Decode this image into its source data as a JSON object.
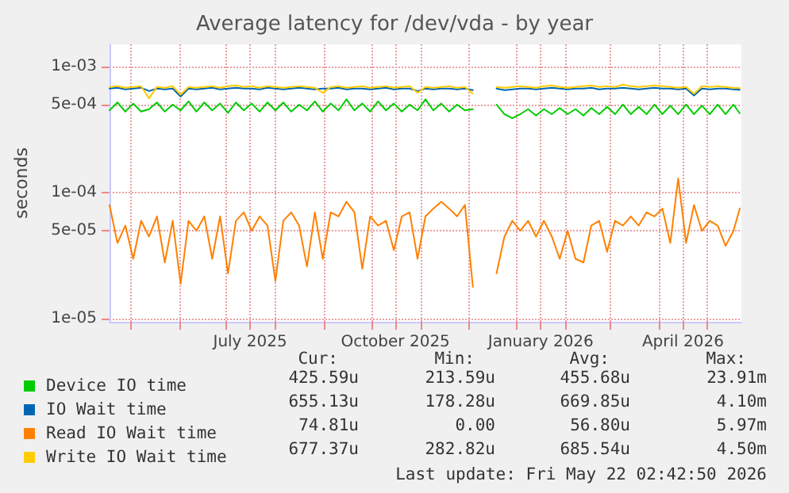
{
  "chart_data": {
    "type": "line",
    "title": "Average latency for /dev/vda - by year",
    "ylabel": "seconds",
    "log": true,
    "grid": true,
    "legend": "bottom left",
    "marker": "none",
    "line_style": "solid",
    "xlim": [
      "2025-04-18",
      "2026-05-23"
    ],
    "xticks": [
      {
        "value": "2025-05-01",
        "label": null
      },
      {
        "value": "2025-06-01",
        "label": null
      },
      {
        "value": "2025-07-01",
        "label": null
      },
      {
        "value": "2025-07-16",
        "label": "July 2025"
      },
      {
        "value": "2025-08-01",
        "label": null
      },
      {
        "value": "2025-09-01",
        "label": null
      },
      {
        "value": "2025-10-01",
        "label": null
      },
      {
        "value": "2025-10-16",
        "label": "October 2025"
      },
      {
        "value": "2025-11-01",
        "label": null
      },
      {
        "value": "2025-12-01",
        "label": null
      },
      {
        "value": "2026-01-01",
        "label": null
      },
      {
        "value": "2026-01-16",
        "label": "January 2026"
      },
      {
        "value": "2026-02-01",
        "label": null
      },
      {
        "value": "2026-03-01",
        "label": null
      },
      {
        "value": "2026-04-01",
        "label": null
      },
      {
        "value": "2026-04-16",
        "label": "April 2026"
      },
      {
        "value": "2026-05-01",
        "label": null
      }
    ],
    "ylim": [
      9.5e-06,
      0.0015
    ],
    "yticks": [
      {
        "value": 1e-05,
        "label": "1e-05"
      },
      {
        "value": 5e-05,
        "label": "5e-05"
      },
      {
        "value": 0.0001,
        "label": "1e-04"
      },
      {
        "value": 0.0005,
        "label": "5e-04"
      },
      {
        "value": 0.001,
        "label": "1e-03"
      }
    ],
    "x": [
      "2025-04-18",
      "2025-04-23",
      "2025-04-28",
      "2025-05-03",
      "2025-05-08",
      "2025-05-13",
      "2025-05-18",
      "2025-05-23",
      "2025-05-28",
      "2025-06-02",
      "2025-06-07",
      "2025-06-12",
      "2025-06-17",
      "2025-06-22",
      "2025-06-27",
      "2025-07-02",
      "2025-07-07",
      "2025-07-12",
      "2025-07-17",
      "2025-07-22",
      "2025-07-27",
      "2025-08-01",
      "2025-08-06",
      "2025-08-11",
      "2025-08-16",
      "2025-08-21",
      "2025-08-26",
      "2025-08-31",
      "2025-09-05",
      "2025-09-10",
      "2025-09-15",
      "2025-09-20",
      "2025-09-25",
      "2025-09-30",
      "2025-10-05",
      "2025-10-10",
      "2025-10-15",
      "2025-10-20",
      "2025-10-25",
      "2025-10-30",
      "2025-11-04",
      "2025-11-09",
      "2025-11-14",
      "2025-11-19",
      "2025-11-24",
      "2025-11-29",
      "2025-12-04",
      "2025-12-09",
      "2025-12-14",
      "2025-12-19",
      "2025-12-24",
      "2025-12-29",
      "2026-01-03",
      "2026-01-08",
      "2026-01-13",
      "2026-01-18",
      "2026-01-23",
      "2026-01-28",
      "2026-02-02",
      "2026-02-07",
      "2026-02-12",
      "2026-02-17",
      "2026-02-22",
      "2026-02-27",
      "2026-03-04",
      "2026-03-09",
      "2026-03-14",
      "2026-03-19",
      "2026-03-24",
      "2026-03-29",
      "2026-04-03",
      "2026-04-08",
      "2026-04-13",
      "2026-04-18",
      "2026-04-23",
      "2026-04-28",
      "2026-05-03",
      "2026-05-08",
      "2026-05-13",
      "2026-05-18",
      "2026-05-22"
    ],
    "series": [
      {
        "name": "Device IO time",
        "color": "#00cc00",
        "values": [
          0.00045,
          0.00052,
          0.00044,
          0.00051,
          0.00044,
          0.00046,
          0.00052,
          0.00044,
          0.0005,
          0.00045,
          0.00053,
          0.00044,
          0.00052,
          0.00045,
          0.00051,
          0.00043,
          0.00052,
          0.00045,
          0.00051,
          0.00044,
          0.00052,
          0.00045,
          0.00052,
          0.00044,
          0.0005,
          0.00045,
          0.00053,
          0.00044,
          0.00051,
          0.00045,
          0.00055,
          0.00045,
          0.00051,
          0.00044,
          0.00053,
          0.00045,
          0.00051,
          0.00044,
          0.0005,
          0.00045,
          0.00055,
          0.00045,
          0.00051,
          0.00044,
          0.0005,
          0.00045,
          0.00046,
          null,
          null,
          0.0005,
          0.00042,
          0.00039,
          0.00042,
          0.00046,
          0.00041,
          0.00046,
          0.00042,
          0.00047,
          0.00042,
          0.00046,
          0.00041,
          0.00047,
          0.00042,
          0.00048,
          0.00042,
          0.0005,
          0.00042,
          0.00048,
          0.00042,
          0.0005,
          0.00042,
          0.00049,
          0.00042,
          0.0005,
          0.00042,
          0.00049,
          0.00042,
          0.0005,
          0.00042,
          0.0005,
          0.000426
        ]
      },
      {
        "name": "IO Wait time",
        "color": "#0066b3",
        "values": [
          0.00067,
          0.00068,
          0.00066,
          0.00067,
          0.00068,
          0.00064,
          0.00067,
          0.00066,
          0.00067,
          0.00058,
          0.00067,
          0.00066,
          0.00067,
          0.00068,
          0.00066,
          0.00067,
          0.00068,
          0.00067,
          0.00067,
          0.00066,
          0.00068,
          0.00067,
          0.00066,
          0.00067,
          0.00068,
          0.00067,
          0.00066,
          0.00067,
          0.00067,
          0.00068,
          0.00066,
          0.00067,
          0.00067,
          0.00066,
          0.00067,
          0.00068,
          0.00066,
          0.00067,
          0.00067,
          0.00064,
          0.00067,
          0.00066,
          0.00067,
          0.00067,
          0.00066,
          0.00067,
          0.00065,
          null,
          null,
          0.00067,
          0.00065,
          0.00066,
          0.00067,
          0.00067,
          0.00066,
          0.00067,
          0.00068,
          0.00067,
          0.00066,
          0.00067,
          0.00067,
          0.00068,
          0.00066,
          0.00067,
          0.00067,
          0.00068,
          0.00067,
          0.00066,
          0.00067,
          0.00068,
          0.00067,
          0.00067,
          0.00066,
          0.00067,
          0.00059,
          0.00067,
          0.00066,
          0.00067,
          0.00067,
          0.00066,
          0.000655
        ]
      },
      {
        "name": "Read IO Wait time",
        "color": "#ff8000",
        "values": [
          8e-05,
          4e-05,
          5.5e-05,
          3e-05,
          6e-05,
          4.5e-05,
          6.5e-05,
          2.8e-05,
          6e-05,
          1.9e-05,
          6e-05,
          5e-05,
          6.5e-05,
          3e-05,
          6.5e-05,
          2.3e-05,
          6e-05,
          7e-05,
          5e-05,
          6.5e-05,
          5.5e-05,
          2e-05,
          6e-05,
          7e-05,
          5.5e-05,
          2.6e-05,
          7e-05,
          3e-05,
          7e-05,
          6.5e-05,
          8.5e-05,
          7e-05,
          2.5e-05,
          6.5e-05,
          5.5e-05,
          6e-05,
          3.5e-05,
          6.5e-05,
          7e-05,
          3e-05,
          6.5e-05,
          7.5e-05,
          8.5e-05,
          7.5e-05,
          6.5e-05,
          8e-05,
          1.8e-05,
          null,
          null,
          2.3e-05,
          4.5e-05,
          6e-05,
          5e-05,
          6e-05,
          4.5e-05,
          6e-05,
          4.5e-05,
          3e-05,
          5e-05,
          3e-05,
          2.8e-05,
          5.5e-05,
          6e-05,
          3.4e-05,
          6e-05,
          5.5e-05,
          6.5e-05,
          5.5e-05,
          7e-05,
          6.5e-05,
          7.5e-05,
          4e-05,
          0.00013,
          4e-05,
          8e-05,
          5e-05,
          6e-05,
          5.5e-05,
          3.8e-05,
          5e-05,
          7.5e-05
        ]
      },
      {
        "name": "Write IO Wait time",
        "color": "#ffcc00",
        "values": [
          0.00069,
          0.0007,
          0.00068,
          0.00069,
          0.0007,
          0.00056,
          0.00069,
          0.00068,
          0.0007,
          0.0006,
          0.00069,
          0.00068,
          0.00069,
          0.0007,
          0.00068,
          0.0007,
          0.00071,
          0.00069,
          0.0007,
          0.00068,
          0.0007,
          0.00069,
          0.00068,
          0.00069,
          0.0007,
          0.00069,
          0.00068,
          0.00062,
          0.00069,
          0.0007,
          0.00068,
          0.00069,
          0.0007,
          0.00068,
          0.00069,
          0.0007,
          0.00068,
          0.00069,
          0.0007,
          0.00062,
          0.00069,
          0.00068,
          0.00069,
          0.0007,
          0.00068,
          0.00069,
          0.00061,
          null,
          null,
          0.00069,
          0.00068,
          0.00069,
          0.0007,
          0.00069,
          0.00068,
          0.0007,
          0.00071,
          0.00069,
          0.00068,
          0.00069,
          0.0007,
          0.00071,
          0.00069,
          0.0007,
          0.00069,
          0.00072,
          0.0007,
          0.00069,
          0.0007,
          0.00071,
          0.0007,
          0.00069,
          0.00068,
          0.00069,
          0.00061,
          0.0007,
          0.00069,
          0.0007,
          0.00069,
          0.00068,
          0.000677
        ]
      }
    ],
    "annotations": [
      "Cur:",
      "Min:",
      "Avg:",
      "Max:",
      "425.59u",
      "213.59u",
      "455.68u",
      "23.91m",
      "655.13u",
      "178.28u",
      "669.85u",
      "4.10m",
      "74.81u",
      "0.00",
      "56.80u",
      "5.97m",
      "677.37u",
      "282.82u",
      "685.54u",
      "4.50m",
      "Last update: Fri May 22 02:42:50 2026"
    ]
  }
}
